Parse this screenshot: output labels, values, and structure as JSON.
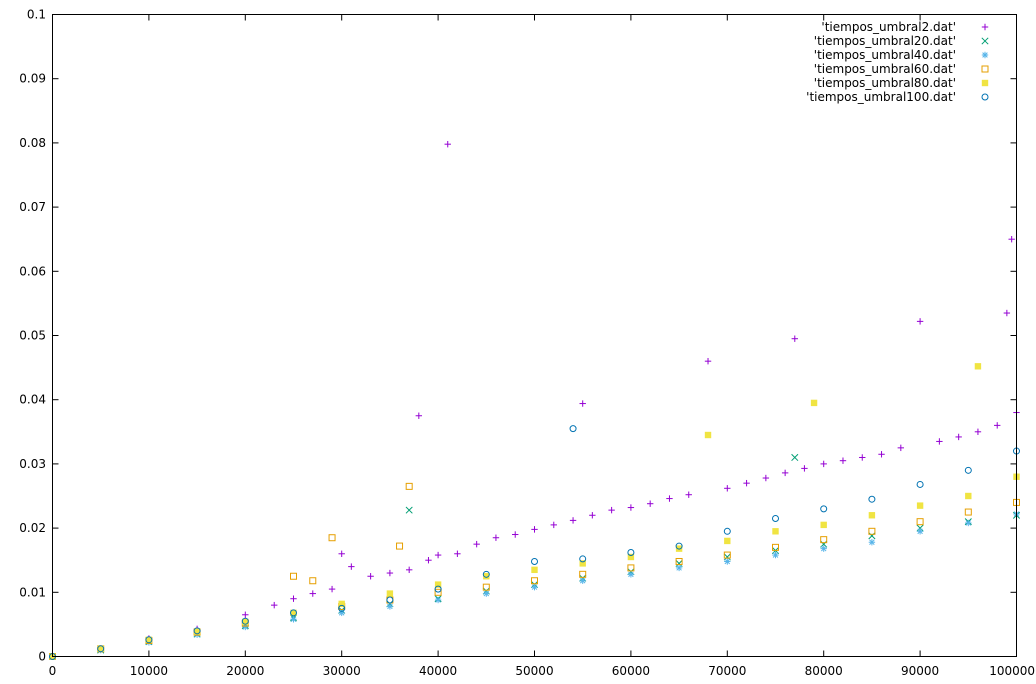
{
  "chart_data": {
    "type": "scatter",
    "title": "",
    "xlabel": "",
    "ylabel": "",
    "xlim": [
      0,
      100000
    ],
    "ylim": [
      0,
      0.1
    ],
    "x_ticks": [
      0,
      10000,
      20000,
      30000,
      40000,
      50000,
      60000,
      70000,
      80000,
      90000,
      100000
    ],
    "y_ticks": [
      0,
      0.01,
      0.02,
      0.03,
      0.04,
      0.05,
      0.06,
      0.07,
      0.08,
      0.09,
      0.1
    ],
    "x_tick_labels": [
      "0",
      "10000",
      "20000",
      "30000",
      "40000",
      "50000",
      "60000",
      "70000",
      "80000",
      "90000",
      "100000"
    ],
    "y_tick_labels": [
      "0",
      "0.01",
      "0.02",
      "0.03",
      "0.04",
      "0.05",
      "0.06",
      "0.07",
      "0.08",
      "0.09",
      "0.1"
    ],
    "grid": false,
    "legend_position": "top-right",
    "series": [
      {
        "name": "'tiempos_umbral2.dat'",
        "color": "#9400d3",
        "marker": "plus",
        "x": [
          0,
          5000,
          10000,
          15000,
          20000,
          23000,
          25000,
          27000,
          29000,
          30000,
          31000,
          33000,
          35000,
          37000,
          38000,
          39000,
          40000,
          41000,
          42000,
          44000,
          46000,
          48000,
          50000,
          52000,
          54000,
          55000,
          56000,
          58000,
          60000,
          62000,
          64000,
          66000,
          68000,
          70000,
          72000,
          74000,
          76000,
          77000,
          78000,
          80000,
          82000,
          84000,
          86000,
          88000,
          90000,
          92000,
          94000,
          96000,
          98000,
          100000,
          99500,
          99000
        ],
        "y": [
          0,
          0.0012,
          0.0028,
          0.0043,
          0.0065,
          0.008,
          0.009,
          0.0098,
          0.0105,
          0.016,
          0.014,
          0.0125,
          0.013,
          0.0135,
          0.0375,
          0.015,
          0.0158,
          0.0798,
          0.016,
          0.0175,
          0.0185,
          0.019,
          0.0198,
          0.0205,
          0.0212,
          0.0394,
          0.022,
          0.0228,
          0.0232,
          0.0238,
          0.0246,
          0.0252,
          0.046,
          0.0262,
          0.027,
          0.0278,
          0.0286,
          0.0495,
          0.0293,
          0.03,
          0.0305,
          0.031,
          0.0315,
          0.0325,
          0.0522,
          0.0335,
          0.0342,
          0.035,
          0.036,
          0.038,
          0.065,
          0.0535
        ]
      },
      {
        "name": "'tiempos_umbral20.dat'",
        "color": "#009e73",
        "marker": "x",
        "x": [
          0,
          5000,
          10000,
          15000,
          20000,
          25000,
          30000,
          35000,
          37000,
          40000,
          45000,
          50000,
          55000,
          60000,
          65000,
          70000,
          75000,
          77000,
          80000,
          85000,
          90000,
          95000,
          100000
        ],
        "y": [
          0,
          0.001,
          0.0023,
          0.0035,
          0.0048,
          0.006,
          0.0072,
          0.0082,
          0.0228,
          0.009,
          0.0102,
          0.0112,
          0.0122,
          0.0132,
          0.0145,
          0.0155,
          0.0165,
          0.031,
          0.0175,
          0.0188,
          0.02,
          0.021,
          0.022
        ]
      },
      {
        "name": "'tiempos_umbral40.dat'",
        "color": "#56b4e9",
        "marker": "star",
        "x": [
          0,
          5000,
          10000,
          15000,
          20000,
          25000,
          30000,
          35000,
          40000,
          45000,
          50000,
          55000,
          60000,
          65000,
          70000,
          75000,
          80000,
          85000,
          90000,
          95000,
          100000
        ],
        "y": [
          0,
          0.001,
          0.0022,
          0.0034,
          0.0046,
          0.0058,
          0.0068,
          0.0078,
          0.0088,
          0.0098,
          0.0108,
          0.0118,
          0.0128,
          0.0138,
          0.0148,
          0.0158,
          0.0168,
          0.0178,
          0.0195,
          0.0208,
          0.0222
        ]
      },
      {
        "name": "'tiempos_umbral60.dat'",
        "color": "#e69f00",
        "marker": "square-open",
        "x": [
          0,
          5000,
          10000,
          15000,
          20000,
          25000,
          27000,
          29000,
          30000,
          35000,
          36000,
          37000,
          40000,
          45000,
          50000,
          55000,
          60000,
          65000,
          70000,
          75000,
          80000,
          85000,
          90000,
          95000,
          100000
        ],
        "y": [
          0,
          0.0012,
          0.0025,
          0.0038,
          0.0052,
          0.0125,
          0.0118,
          0.0185,
          0.0078,
          0.0088,
          0.0172,
          0.0265,
          0.01,
          0.0108,
          0.0118,
          0.0128,
          0.0138,
          0.0148,
          0.0158,
          0.017,
          0.0182,
          0.0195,
          0.021,
          0.0225,
          0.024
        ]
      },
      {
        "name": "'tiempos_umbral80.dat'",
        "color": "#f0e442",
        "marker": "square-filled",
        "x": [
          0,
          5000,
          10000,
          15000,
          20000,
          25000,
          30000,
          35000,
          40000,
          45000,
          50000,
          55000,
          60000,
          65000,
          68000,
          70000,
          75000,
          79000,
          80000,
          85000,
          90000,
          95000,
          96000,
          100000
        ],
        "y": [
          0,
          0.0012,
          0.0026,
          0.0039,
          0.0054,
          0.0068,
          0.0082,
          0.0098,
          0.0112,
          0.0125,
          0.0135,
          0.0145,
          0.0155,
          0.0168,
          0.0345,
          0.018,
          0.0195,
          0.0395,
          0.0205,
          0.022,
          0.0235,
          0.025,
          0.0452,
          0.028
        ]
      },
      {
        "name": "'tiempos_umbral100.dat'",
        "color": "#0072b2",
        "marker": "circle-open",
        "x": [
          0,
          5000,
          10000,
          15000,
          20000,
          25000,
          30000,
          35000,
          40000,
          45000,
          50000,
          54000,
          55000,
          60000,
          65000,
          70000,
          75000,
          80000,
          85000,
          90000,
          95000,
          100000
        ],
        "y": [
          0,
          0.0012,
          0.0026,
          0.004,
          0.0055,
          0.0068,
          0.0075,
          0.0088,
          0.0105,
          0.0128,
          0.0148,
          0.0355,
          0.0152,
          0.0162,
          0.0172,
          0.0195,
          0.0215,
          0.023,
          0.0245,
          0.0268,
          0.029,
          0.032
        ]
      }
    ]
  }
}
